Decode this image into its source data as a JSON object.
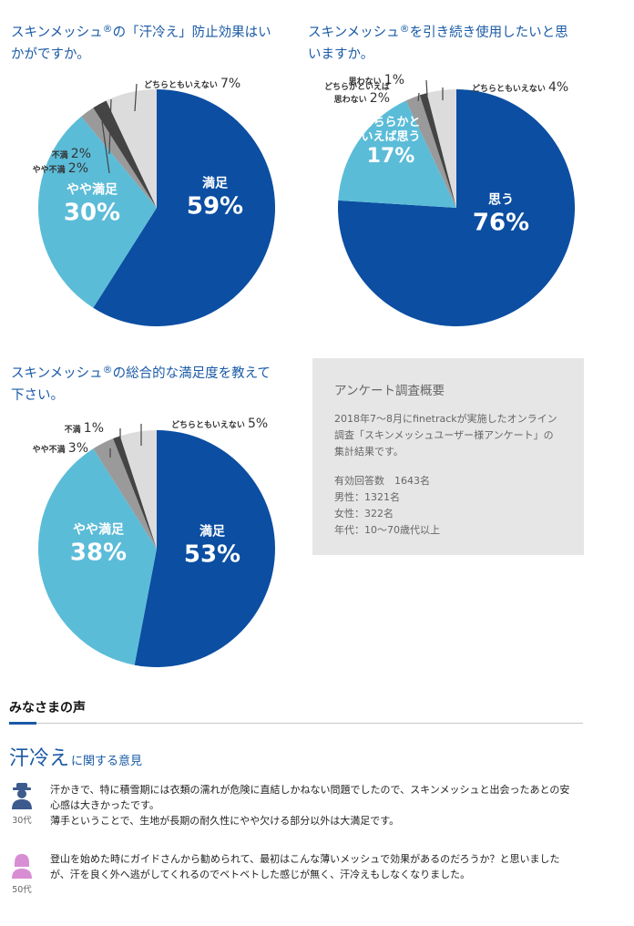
{
  "chart_data": [
    {
      "type": "pie",
      "title": "スキンメッシュ®の「汗冷え」防止効果はいかがですか。",
      "title_lines": [
        "スキンメッシュ",
        "®",
        "の「汗冷え」防止効果はい",
        "かがですか。"
      ],
      "categories": [
        "満足",
        "やや満足",
        "やや不満",
        "不満",
        "どちらともいえない"
      ],
      "values": [
        59,
        30,
        2,
        2,
        7
      ],
      "labels": [
        {
          "lines": [
            "満足"
          ],
          "pct": "59%"
        },
        {
          "lines": [
            "やや満足"
          ],
          "pct": "30%"
        },
        {
          "lines": [
            "やや不満"
          ],
          "pct": "2%"
        },
        {
          "lines": [
            "不満"
          ],
          "pct": "2%"
        },
        {
          "lines": [
            "どちらともいえない"
          ],
          "pct": "7%"
        }
      ]
    },
    {
      "type": "pie",
      "title": "スキンメッシュ®を引き続き使用したいと思いますか。",
      "title_lines": [
        "スキンメッシュ",
        "®",
        "を引き続き使用したいと思",
        "いますか。"
      ],
      "categories": [
        "思う",
        "どちらかといえば思う",
        "どちらかといえば思わない",
        "思わない",
        "どちらともいえない"
      ],
      "values": [
        76,
        17,
        2,
        1,
        4
      ],
      "labels": [
        {
          "lines": [
            "思う"
          ],
          "pct": "76%"
        },
        {
          "lines": [
            "どちらかと",
            "いえば思う"
          ],
          "pct": "17%"
        },
        {
          "lines": [
            "どちらかといえば",
            "思わない"
          ],
          "pct": "2%"
        },
        {
          "lines": [
            "思わない"
          ],
          "pct": "1%"
        },
        {
          "lines": [
            "どちらともいえない"
          ],
          "pct": "4%"
        }
      ]
    },
    {
      "type": "pie",
      "title": "スキンメッシュ®の総合的な満足度を教えて下さい。",
      "title_lines": [
        "スキンメッシュ",
        "®",
        "の総合的な満足度を教えて",
        "下さい。"
      ],
      "categories": [
        "満足",
        "やや満足",
        "やや不満",
        "不満",
        "どちらともいえない"
      ],
      "values": [
        53,
        38,
        3,
        1,
        5
      ],
      "labels": [
        {
          "lines": [
            "満足"
          ],
          "pct": "53%"
        },
        {
          "lines": [
            "やや満足"
          ],
          "pct": "38%"
        },
        {
          "lines": [
            "やや不満"
          ],
          "pct": "3%"
        },
        {
          "lines": [
            "不満"
          ],
          "pct": "1%"
        },
        {
          "lines": [
            "どちらともいえない"
          ],
          "pct": "5%"
        }
      ]
    }
  ],
  "colors": {
    "dark_blue": "#0b4ea2",
    "light_blue": "#5bbcd8",
    "gray": "#9a9a9a",
    "dark_gray": "#444444",
    "light_gray": "#dcdcdc",
    "title_blue": "#1a5aa6",
    "summary_bg": "#e6e6e6",
    "male_icon": "#3c5a8c",
    "female_icon": "#d88ed3"
  },
  "summary": {
    "title": "アンケート調査概要",
    "desc": [
      "2018年7〜8月にfinetrackが実施したオンライン",
      "調査「スキンメッシュユーザー様アンケート」の",
      "集計結果です。"
    ],
    "stats": [
      "有効回答数　1643名",
      "男性：1321名",
      "女性：322名",
      "年代：10〜70歳代以上"
    ]
  },
  "voices": {
    "title": "みなさまの声",
    "topic_big": "汗冷え",
    "topic_small": "に関する意見",
    "comments": [
      {
        "icon": "male-avatar-icon",
        "age": "30代",
        "lines": [
          "汗かきで、特に積雪期には衣類の濡れが危険に直結しかねない問題でしたので、スキンメッシュと出会ったあとの安",
          "心感は大きかったです。",
          "薄手ということで、生地が長期の耐久性にやや欠ける部分以外は大満足です。"
        ]
      },
      {
        "icon": "female-avatar-icon",
        "age": "50代",
        "lines": [
          "登山を始めた時にガイドさんから勧められて、最初はこんな薄いメッシュで効果があるのだろうか？と思いました",
          "が、汗を良く外へ逃がしてくれるのでベトベトした感じが無く、汗冷えもしなくなりました。"
        ]
      }
    ]
  }
}
